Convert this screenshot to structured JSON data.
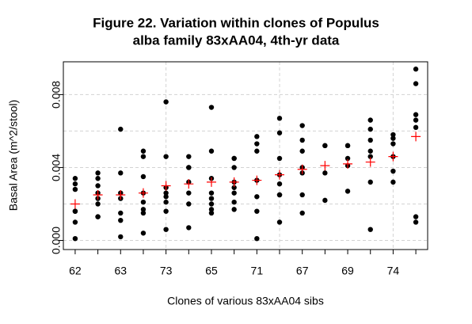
{
  "chart_data": {
    "type": "strip",
    "title": [
      "Figure 22. Variation within clones of Populus",
      "alba family 83xAA04, 4th-yr data"
    ],
    "x_label": "Clones of various 83xAA04 sibs",
    "y_label": "Basal Area (m^2/stool)",
    "categories": [
      "62",
      null,
      "63",
      null,
      "73",
      null,
      "65",
      null,
      "71",
      null,
      "67",
      null,
      "69",
      null,
      "74",
      null
    ],
    "points": [
      [
        0.0034,
        0.0031,
        0.0028,
        0.0016,
        0.0016,
        0.001,
        0.0001
      ],
      [
        0.0037,
        0.0034,
        0.003,
        0.0026,
        0.0023,
        0.002,
        0.0013,
        0.0013
      ],
      [
        0.0061,
        0.0037,
        0.0026,
        0.0023,
        0.0015,
        0.0011,
        0.0002
      ],
      [
        0.0049,
        0.0046,
        0.0035,
        0.0026,
        0.0021,
        0.0017,
        0.0015,
        0.0004
      ],
      [
        0.0076,
        0.0046,
        0.0029,
        0.0026,
        0.0024,
        0.0021,
        0.0016,
        0.0006
      ],
      [
        0.0046,
        0.004,
        0.004,
        0.0032,
        0.0026,
        0.002,
        0.0007
      ],
      [
        0.0073,
        0.0049,
        0.0034,
        0.0026,
        0.0023,
        0.002,
        0.0017,
        0.0015
      ],
      [
        0.0045,
        0.0045,
        0.004,
        0.0032,
        0.0029,
        0.0026,
        0.0021,
        0.0017
      ],
      [
        0.0057,
        0.0053,
        0.0049,
        0.0033,
        0.0024,
        0.0016,
        0.0001
      ],
      [
        0.0067,
        0.0059,
        0.0045,
        0.0036,
        0.0031,
        0.0025,
        0.0025,
        0.001
      ],
      [
        0.0063,
        0.0055,
        0.0049,
        0.004,
        0.0037,
        0.0025,
        0.0015
      ],
      [
        0.0052,
        0.0052,
        0.0037,
        0.0022
      ],
      [
        0.0052,
        0.0052,
        0.0045,
        0.0041,
        0.0027
      ],
      [
        0.0066,
        0.0061,
        0.0055,
        0.0049,
        0.0046,
        0.0032,
        0.0006
      ],
      [
        0.0058,
        0.0056,
        0.0053,
        0.0046,
        0.0038,
        0.0032
      ],
      [
        0.0094,
        0.0086,
        0.0069,
        0.0066,
        0.0062,
        0.0013,
        0.001
      ]
    ],
    "means": [
      0.002,
      0.0025,
      0.0025,
      0.0026,
      0.003,
      0.0031,
      0.0032,
      0.0032,
      0.0033,
      0.0036,
      0.0039,
      0.0041,
      0.0042,
      0.0043,
      0.0046,
      0.0057
    ],
    "point_color": "#000000",
    "mean_color": "#ff0000",
    "xlim": [
      0.48,
      16.52
    ],
    "ylim": [
      -0.0005,
      0.0098
    ],
    "yticks": [
      {
        "value": 0,
        "label": "0.000"
      },
      0.004,
      0.008
    ],
    "xgrid": [
      5,
      10,
      15
    ],
    "ygrid": [
      0,
      0.002,
      0.004,
      0.006,
      0.008
    ]
  }
}
